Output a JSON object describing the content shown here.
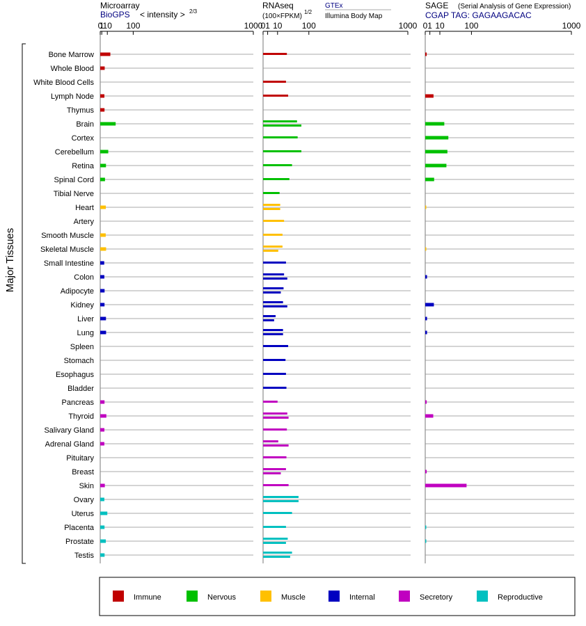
{
  "y_axis_label": "Major Tissues",
  "panels": [
    {
      "key": "microarray",
      "title": "Microarray",
      "source": "BioGPS",
      "scale_label": "< intensity >",
      "scale_exponent": "2/3",
      "ticks": [
        "0",
        "1",
        "10",
        "100",
        "1000"
      ]
    },
    {
      "key": "rnaseq",
      "title": "RNAseq",
      "scale_label": "(100×FPKM)",
      "scale_exponent": "1/2",
      "source_top": "GTEx",
      "source_bottom": "Illumina Body Map",
      "ticks": [
        "0",
        "1",
        "10",
        "100",
        "1000"
      ]
    },
    {
      "key": "sage",
      "title": "SAGE",
      "subtitle": "(Serial Analysis of Gene Expression)",
      "source": "CGAP TAG: GAGAAGACAC",
      "ticks": [
        "0",
        "1",
        "10",
        "100",
        "1000"
      ]
    }
  ],
  "legend": [
    {
      "label": "Immune",
      "color": "#c00000"
    },
    {
      "label": "Nervous",
      "color": "#00c000"
    },
    {
      "label": "Muscle",
      "color": "#ffc000"
    },
    {
      "label": "Internal",
      "color": "#0000c0"
    },
    {
      "label": "Secretory",
      "color": "#c000c0"
    },
    {
      "label": "Reproductive",
      "color": "#00c0c0"
    }
  ],
  "chart_data": {
    "type": "bar",
    "orientation": "horizontal",
    "x_scale": "0 then log10 (ticks 0, 1, 10, 100, 1000)",
    "xlim": [
      0,
      1000
    ],
    "categories": [
      "Bone Marrow",
      "Whole Blood",
      "White Blood Cells",
      "Lymph Node",
      "Thymus",
      "Brain",
      "Cortex",
      "Cerebellum",
      "Retina",
      "Spinal Cord",
      "Tibial Nerve",
      "Heart",
      "Artery",
      "Smooth Muscle",
      "Skeletal Muscle",
      "Small Intestine",
      "Colon",
      "Adipocyte",
      "Kidney",
      "Liver",
      "Lung",
      "Spleen",
      "Stomach",
      "Esophagus",
      "Bladder",
      "Pancreas",
      "Thyroid",
      "Salivary Gland",
      "Adrenal Gland",
      "Pituitary",
      "Breast",
      "Skin",
      "Ovary",
      "Uterus",
      "Placenta",
      "Prostate",
      "Testis"
    ],
    "tissue_group": [
      "Immune",
      "Immune",
      "Immune",
      "Immune",
      "Immune",
      "Nervous",
      "Nervous",
      "Nervous",
      "Nervous",
      "Nervous",
      "Nervous",
      "Muscle",
      "Muscle",
      "Muscle",
      "Muscle",
      "Internal",
      "Internal",
      "Internal",
      "Internal",
      "Internal",
      "Internal",
      "Internal",
      "Internal",
      "Internal",
      "Internal",
      "Secretory",
      "Secretory",
      "Secretory",
      "Secretory",
      "Secretory",
      "Secretory",
      "Secretory",
      "Reproductive",
      "Reproductive",
      "Reproductive",
      "Reproductive",
      "Reproductive"
    ],
    "series": [
      {
        "name": "Microarray",
        "values": [
          17,
          5,
          null,
          4.5,
          4.7,
          32,
          null,
          12,
          7.3,
          5.5,
          null,
          7,
          null,
          6.8,
          7.5,
          4.2,
          4.4,
          4.8,
          4.7,
          7.3,
          7.5,
          null,
          null,
          null,
          null,
          4.7,
          8,
          4.5,
          4.4,
          null,
          null,
          5.2,
          4.4,
          10,
          4.7,
          7,
          4.8
        ]
      },
      {
        "name": "GTEx",
        "values": [
          27,
          null,
          25,
          30,
          null,
          55,
          57,
          70,
          40,
          33,
          13,
          14,
          null,
          18,
          18,
          25,
          21,
          20,
          19,
          7.5,
          19,
          30,
          24,
          25,
          26,
          10,
          28,
          27,
          11,
          26,
          25,
          31,
          60,
          40,
          25,
          29,
          40
        ]
      },
      {
        "name": "Illumina Body Map",
        "values": [
          null,
          null,
          null,
          null,
          null,
          70,
          null,
          null,
          null,
          null,
          null,
          14,
          21,
          null,
          11,
          null,
          28,
          15,
          28,
          5.8,
          19,
          null,
          null,
          null,
          null,
          null,
          31,
          null,
          31,
          null,
          15,
          null,
          60,
          null,
          null,
          25,
          35
        ]
      },
      {
        "name": "SAGE",
        "values": [
          0.1,
          null,
          null,
          3.2,
          null,
          17,
          25,
          23,
          21,
          3.7,
          null,
          0.05,
          null,
          null,
          0.05,
          null,
          0.15,
          null,
          3.5,
          0.15,
          0.15,
          null,
          null,
          null,
          null,
          0.1,
          3,
          null,
          null,
          null,
          0.1,
          80,
          null,
          null,
          0.05,
          0.05,
          null
        ]
      }
    ]
  }
}
